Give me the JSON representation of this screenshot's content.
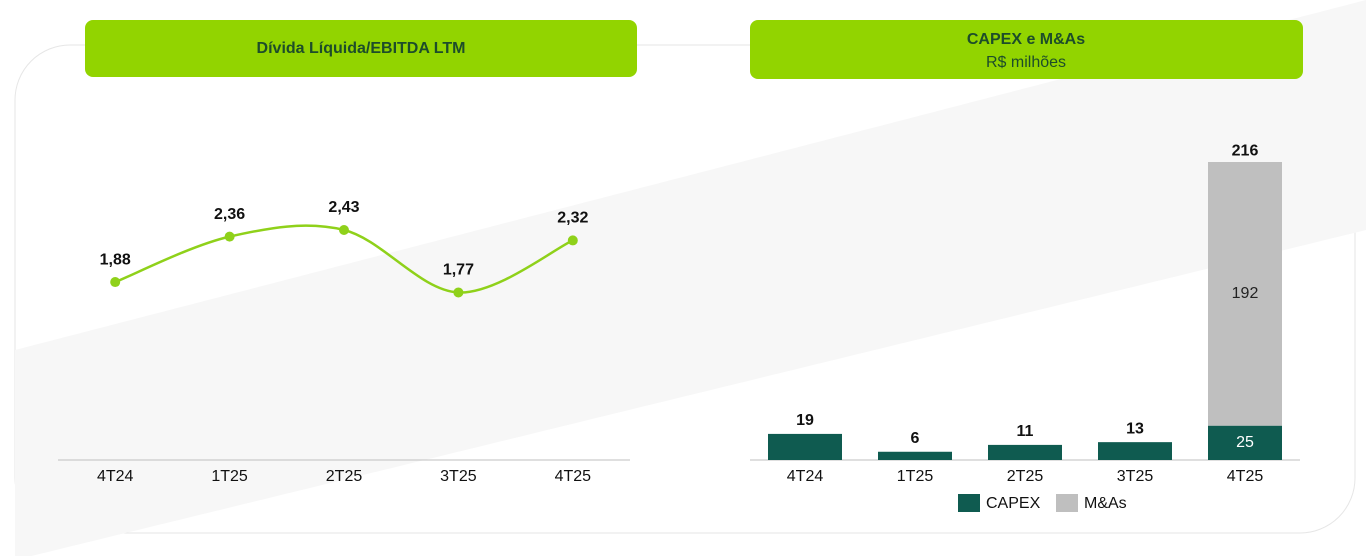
{
  "chart_data": [
    {
      "type": "line",
      "title": "Dívida Líquida/EBITDA LTM",
      "categories": [
        "4T24",
        "1T25",
        "2T25",
        "3T25",
        "4T25"
      ],
      "values": [
        1.88,
        2.36,
        2.43,
        1.77,
        2.32
      ],
      "value_labels": [
        "1,88",
        "2,36",
        "2,43",
        "1,77",
        "2,32"
      ],
      "color": "#8fd11a"
    },
    {
      "type": "stacked_bar",
      "title": "CAPEX e M&As",
      "subtitle": "R$ milhões",
      "categories": [
        "4T24",
        "1T25",
        "2T25",
        "3T25",
        "4T25"
      ],
      "series": [
        {
          "name": "CAPEX",
          "color": "#0f5b50",
          "values": [
            19,
            6,
            11,
            13,
            25
          ]
        },
        {
          "name": "M&As",
          "color": "#bfbfbf",
          "values": [
            null,
            null,
            null,
            null,
            192
          ]
        }
      ],
      "totals": [
        null,
        null,
        null,
        null,
        216
      ],
      "legend": "bottom"
    }
  ]
}
